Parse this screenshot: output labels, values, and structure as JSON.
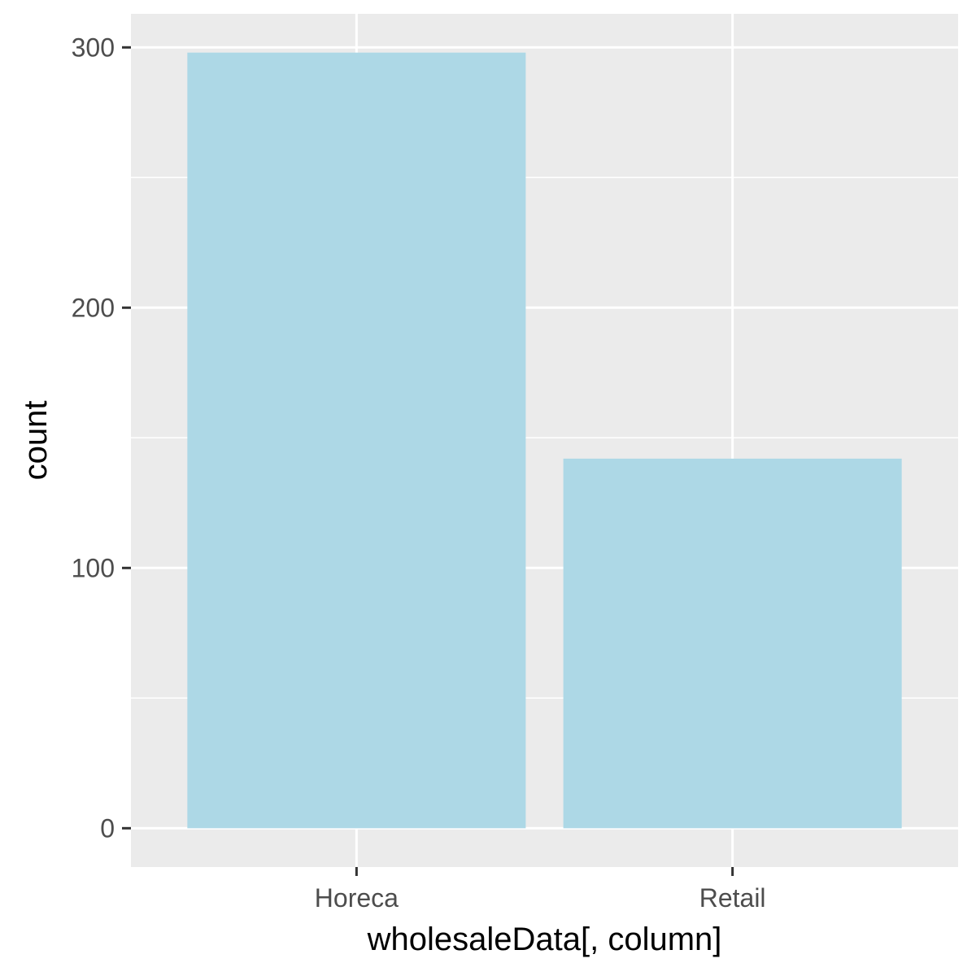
{
  "chart_data": {
    "type": "bar",
    "categories": [
      "Horeca",
      "Retail"
    ],
    "values": [
      298,
      142
    ],
    "xlabel": "wholesaleData[, column]",
    "ylabel": "count",
    "ylim": [
      -14.9,
      312.9
    ],
    "yticks": [
      0,
      100,
      200,
      300
    ],
    "grid": true,
    "legend": "none"
  },
  "colors": {
    "panel_background": "#EBEBEB",
    "grid": "#FFFFFF",
    "bar_fill": "#ADD8E6",
    "tick_text": "#4D4D4D",
    "tick_mark": "#333333"
  }
}
